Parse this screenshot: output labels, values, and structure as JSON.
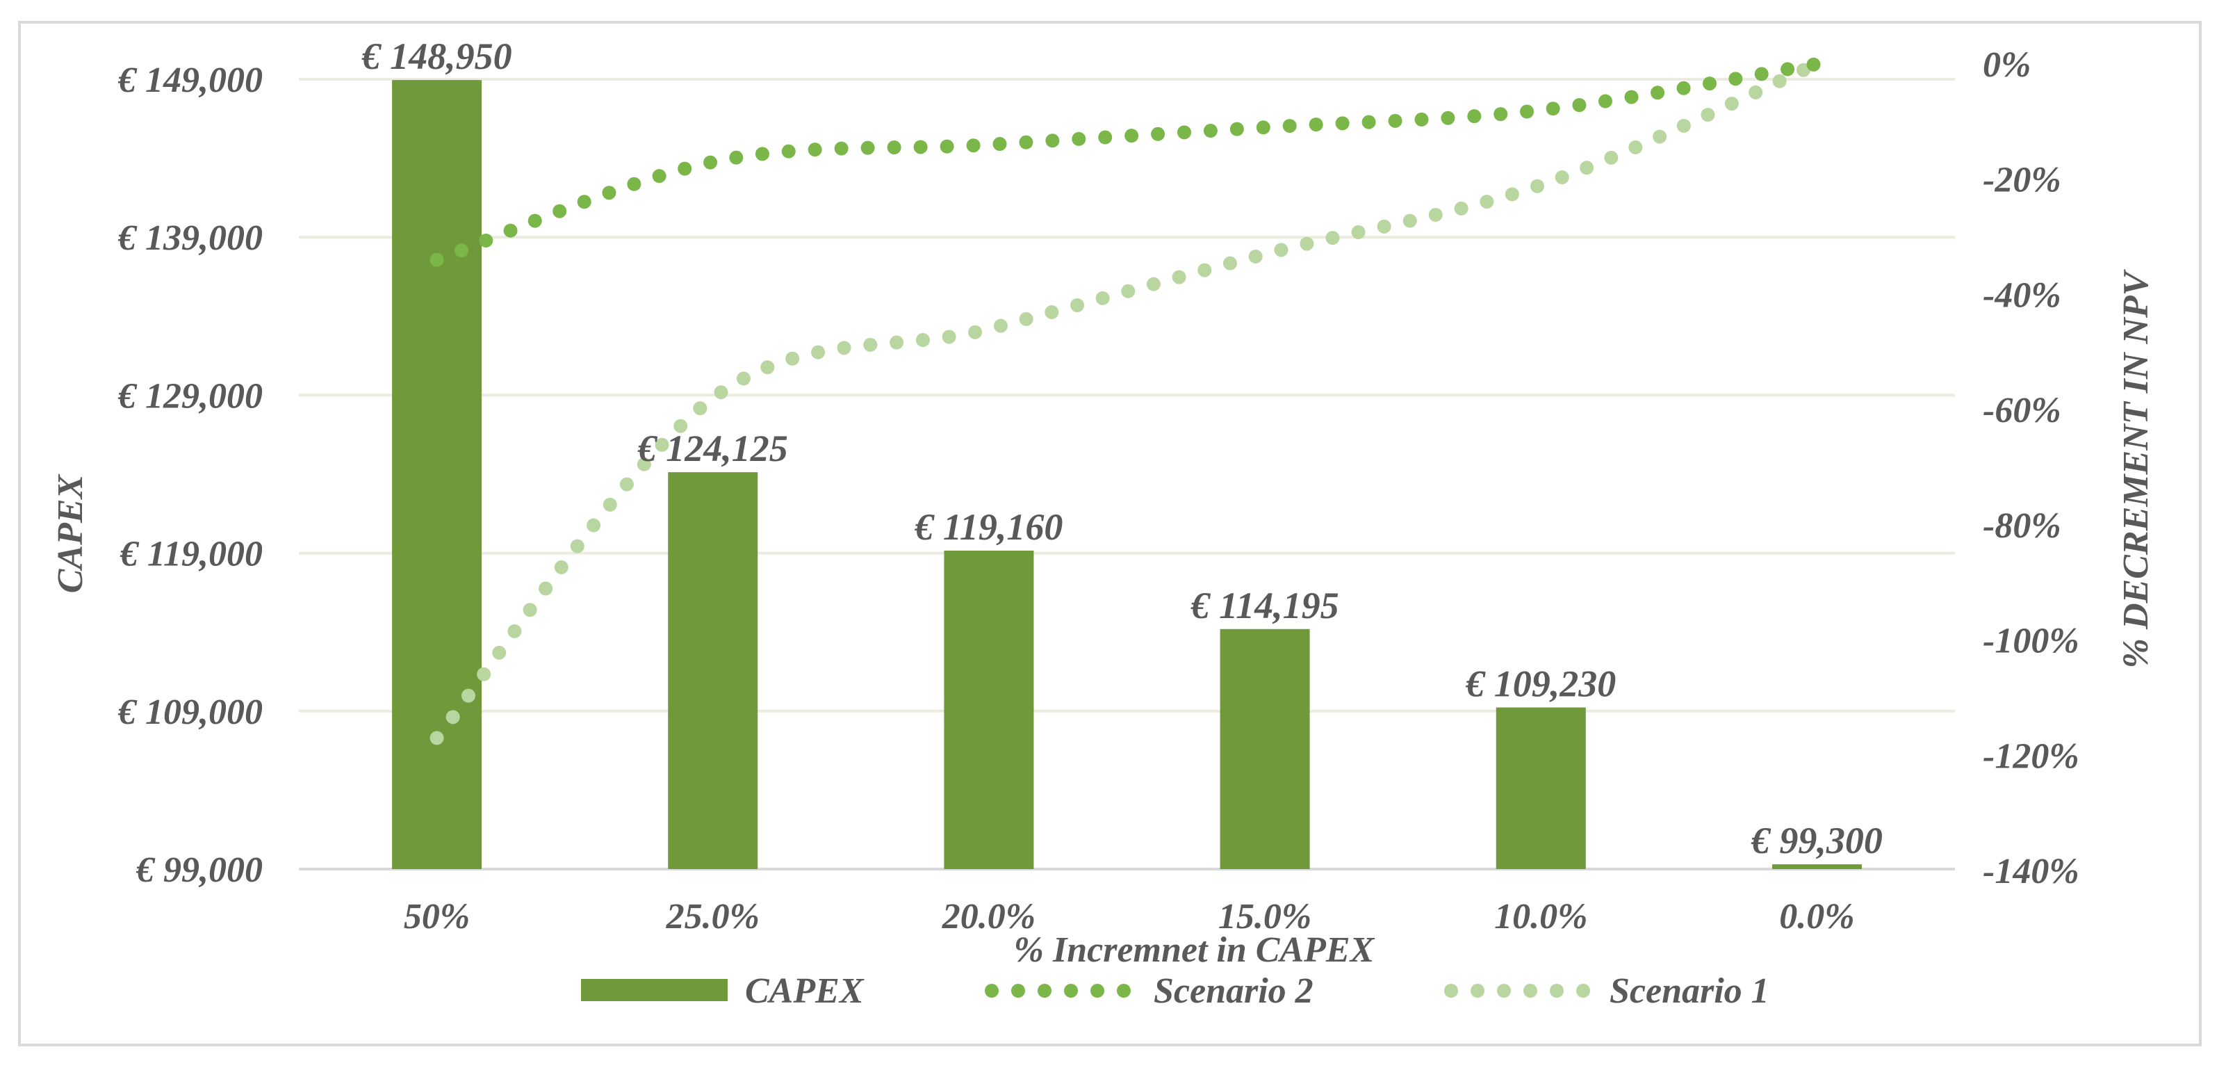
{
  "chart_data": {
    "type": "bar",
    "title": "",
    "xlabel": "% Incremnet in CAPEX",
    "ylabel": "CAPEX",
    "y2label": "% DECREMENT IN NPV",
    "categories": [
      "50%",
      "25.0%",
      "20.0%",
      "15.0%",
      "10.0%",
      "0.0%"
    ],
    "ylim": [
      99000,
      149000
    ],
    "yticks": [
      "€ 99,000",
      "€ 109,000",
      "€ 119,000",
      "€ 129,000",
      "€ 139,000",
      "€ 149,000"
    ],
    "y2lim": [
      -140,
      0
    ],
    "y2ticks": [
      "-140%",
      "-120%",
      "-100%",
      "-80%",
      "-60%",
      "-40%",
      "-20%",
      "0%"
    ],
    "grid": true,
    "legend_position": "bottom",
    "series": [
      {
        "name": "CAPEX",
        "kind": "bar",
        "color": "#70993c",
        "values": [
          148950,
          124125,
          119160,
          114195,
          109230,
          99300
        ],
        "labels": [
          "€ 148,950",
          "€ 124,125",
          "€ 119,160",
          "€ 114,195",
          "€ 109,230",
          "€ 99,300"
        ]
      },
      {
        "name": "Scenario 2",
        "kind": "line",
        "style": "dotted",
        "axis": "secondary",
        "color": "#7ab648",
        "values": [
          -34,
          -17,
          -14,
          -11,
          -8,
          0
        ]
      },
      {
        "name": "Scenario 1",
        "kind": "line",
        "style": "dotted",
        "axis": "secondary",
        "color": "#b9d6a1",
        "values": [
          -117,
          -58,
          -46,
          -33,
          -21,
          0
        ]
      }
    ]
  }
}
